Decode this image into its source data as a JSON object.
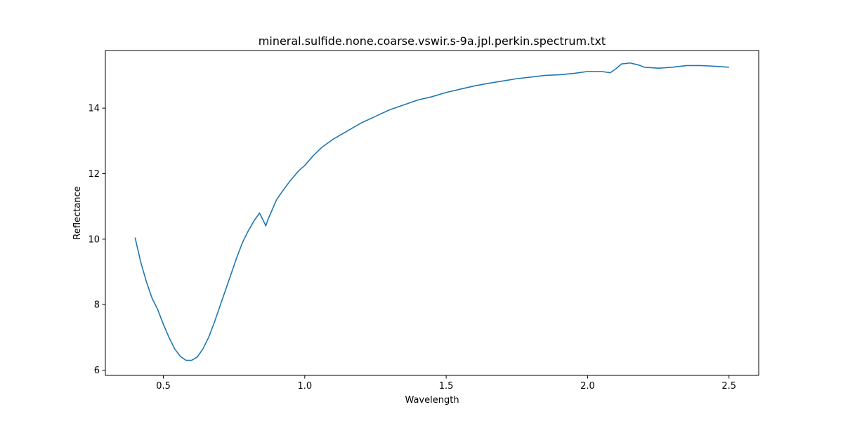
{
  "chart_data": {
    "type": "line",
    "title": "mineral.sulfide.none.coarse.vswir.s-9a.jpl.perkin.spectrum.txt",
    "xlabel": "Wavelength",
    "ylabel": "Reflectance",
    "xlim": [
      0.295,
      2.605
    ],
    "ylim": [
      5.84,
      15.76
    ],
    "xticks": [
      0.5,
      1.0,
      1.5,
      2.0,
      2.5
    ],
    "xtick_labels": [
      "0.5",
      "1.0",
      "1.5",
      "2.0",
      "2.5"
    ],
    "yticks": [
      6,
      8,
      10,
      12,
      14
    ],
    "ytick_labels": [
      "6",
      "8",
      "10",
      "12",
      "14"
    ],
    "grid": false,
    "series_color": "#1f77b4",
    "series": [
      {
        "x": [
          0.4,
          0.42,
          0.44,
          0.46,
          0.48,
          0.5,
          0.52,
          0.54,
          0.56,
          0.58,
          0.6,
          0.62,
          0.64,
          0.66,
          0.68,
          0.7,
          0.72,
          0.74,
          0.76,
          0.78,
          0.8,
          0.82,
          0.84,
          0.86,
          0.862,
          0.87,
          0.88,
          0.9,
          0.92,
          0.95,
          0.98,
          1.0,
          1.03,
          1.06,
          1.1,
          1.15,
          1.2,
          1.25,
          1.3,
          1.35,
          1.4,
          1.45,
          1.5,
          1.55,
          1.6,
          1.65,
          1.7,
          1.75,
          1.8,
          1.85,
          1.9,
          1.95,
          2.0,
          2.05,
          2.08,
          2.1,
          2.12,
          2.15,
          2.18,
          2.2,
          2.25,
          2.3,
          2.35,
          2.4,
          2.45,
          2.5
        ],
        "y": [
          10.05,
          9.3,
          8.7,
          8.2,
          7.85,
          7.4,
          7.0,
          6.65,
          6.42,
          6.3,
          6.3,
          6.4,
          6.65,
          7.0,
          7.45,
          7.95,
          8.45,
          8.95,
          9.45,
          9.9,
          10.25,
          10.55,
          10.8,
          10.45,
          10.4,
          10.6,
          10.8,
          11.2,
          11.45,
          11.8,
          12.1,
          12.25,
          12.55,
          12.8,
          13.05,
          13.3,
          13.55,
          13.75,
          13.95,
          14.1,
          14.25,
          14.35,
          14.48,
          14.58,
          14.68,
          14.76,
          14.83,
          14.9,
          14.95,
          15.0,
          15.02,
          15.06,
          15.12,
          15.12,
          15.08,
          15.2,
          15.35,
          15.38,
          15.32,
          15.25,
          15.22,
          15.25,
          15.3,
          15.3,
          15.28,
          15.25
        ]
      }
    ]
  }
}
